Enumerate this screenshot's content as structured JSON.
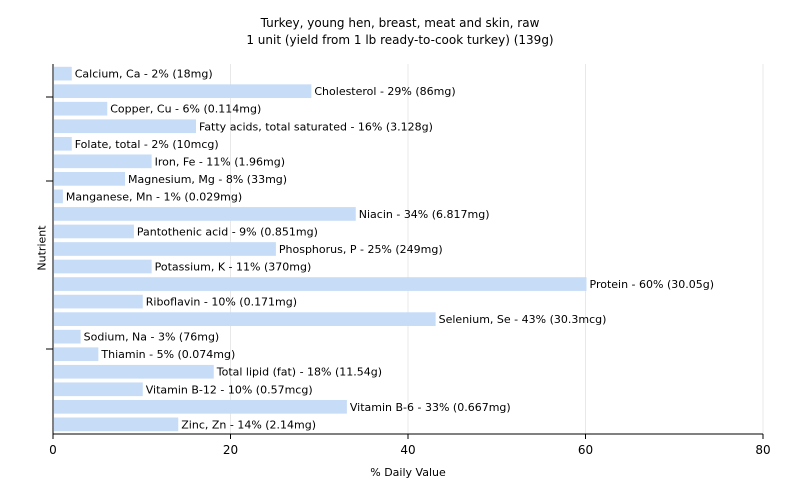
{
  "chart_data": {
    "type": "bar",
    "orientation": "horizontal",
    "title": "Turkey, young hen, breast, meat and skin, raw",
    "subtitle": "1 unit (yield from 1 lb ready-to-cook turkey) (139g)",
    "xlabel": "% Daily Value",
    "ylabel": "Nutrient",
    "xlim": [
      0,
      80
    ],
    "xticks": [
      0,
      20,
      40,
      60,
      80
    ],
    "grid": true,
    "bar_color": "#c6dcf7",
    "categories": [
      "Calcium, Ca",
      "Cholesterol",
      "Copper, Cu",
      "Fatty acids, total saturated",
      "Folate, total",
      "Iron, Fe",
      "Magnesium, Mg",
      "Manganese, Mn",
      "Niacin",
      "Pantothenic acid",
      "Phosphorus, P",
      "Potassium, K",
      "Protein",
      "Riboflavin",
      "Selenium, Se",
      "Sodium, Na",
      "Thiamin",
      "Total lipid (fat)",
      "Vitamin B-12",
      "Vitamin B-6",
      "Zinc, Zn"
    ],
    "values": [
      2,
      29,
      6,
      16,
      2,
      11,
      8,
      1,
      34,
      9,
      25,
      11,
      60,
      10,
      43,
      3,
      5,
      18,
      10,
      33,
      14
    ],
    "labels": [
      "Calcium, Ca - 2% (18mg)",
      "Cholesterol - 29% (86mg)",
      "Copper, Cu - 6% (0.114mg)",
      "Fatty acids, total saturated - 16% (3.128g)",
      "Folate, total - 2% (10mcg)",
      "Iron, Fe - 11% (1.96mg)",
      "Magnesium, Mg - 8% (33mg)",
      "Manganese, Mn - 1% (0.029mg)",
      "Niacin - 34% (6.817mg)",
      "Pantothenic acid - 9% (0.851mg)",
      "Phosphorus, P - 25% (249mg)",
      "Potassium, K - 11% (370mg)",
      "Protein - 60% (30.05g)",
      "Riboflavin - 10% (0.171mg)",
      "Selenium, Se - 43% (30.3mcg)",
      "Sodium, Na - 3% (76mg)",
      "Thiamin - 5% (0.074mg)",
      "Total lipid (fat) - 18% (11.54g)",
      "Vitamin B-12 - 10% (0.57mcg)",
      "Vitamin B-6 - 33% (0.667mg)",
      "Zinc, Zn - 14% (2.14mg)"
    ]
  }
}
